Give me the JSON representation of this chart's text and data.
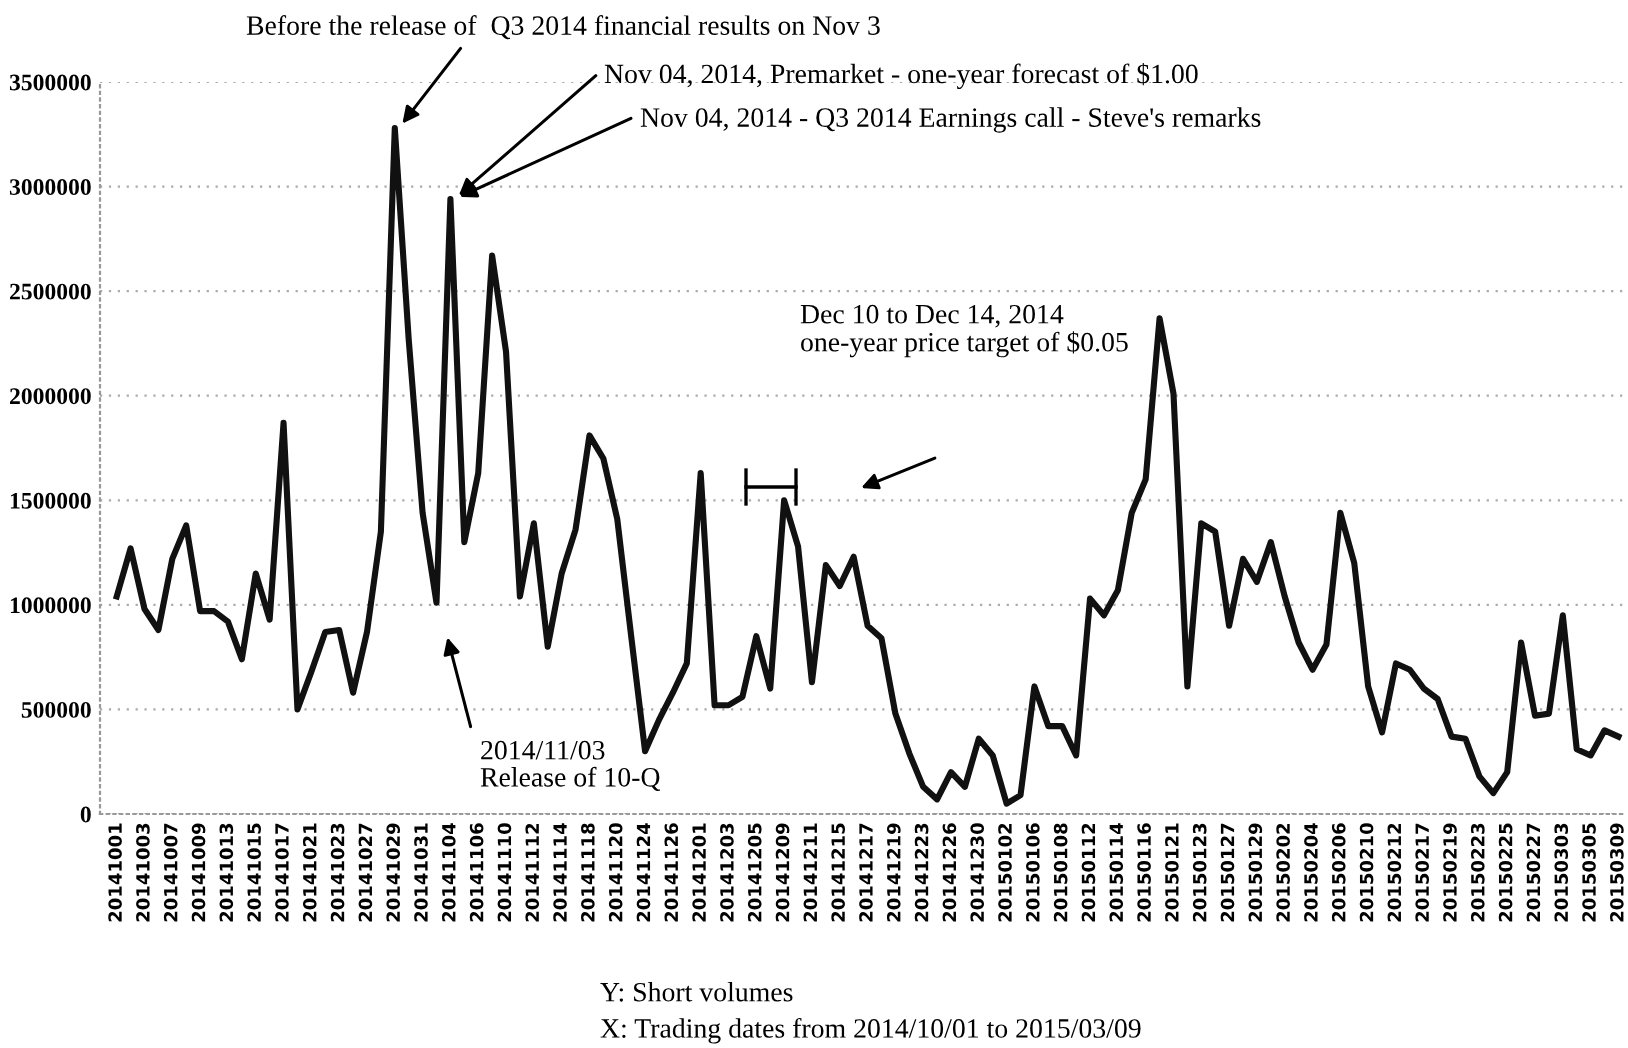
{
  "chart_data": {
    "type": "line",
    "categories": [
      "20141001",
      null,
      "20141003",
      null,
      "20141007",
      null,
      "20141009",
      null,
      "20141013",
      null,
      "20141015",
      null,
      "20141017",
      null,
      "20141021",
      null,
      "20141023",
      null,
      "20141027",
      null,
      "20141029",
      null,
      "20141031",
      null,
      "20141104",
      null,
      "20141106",
      null,
      "20141110",
      null,
      "20141112",
      null,
      "20141114",
      null,
      "20141118",
      null,
      "20141120",
      null,
      "20141124",
      null,
      "20141126",
      null,
      "20141201",
      null,
      "20141203",
      null,
      "20141205",
      null,
      "20141209",
      null,
      "20141211",
      null,
      "20141215",
      null,
      "20141217",
      null,
      "20141219",
      null,
      "20141223",
      null,
      "20141226",
      null,
      "20141230",
      null,
      "20150102",
      null,
      "20150106",
      null,
      "20150108",
      null,
      "20150112",
      null,
      "20150114",
      null,
      "20150116",
      null,
      "20150121",
      null,
      "20150123",
      null,
      "20150127",
      null,
      "20150129",
      null,
      "20150202",
      null,
      "20150204",
      null,
      "20150206",
      null,
      "20150210",
      null,
      "20150212",
      null,
      "20150217",
      null,
      "20150219",
      null,
      "20150223",
      null,
      "20150225",
      null,
      "20150227",
      null,
      "20150303",
      null,
      "20150305",
      null,
      "20150309"
    ],
    "series": [
      {
        "color": "#111111",
        "values": [
          1040000,
          1270000,
          980000,
          880000,
          1220000,
          1380000,
          970000,
          970000,
          920000,
          740000,
          1150000,
          930000,
          1870000,
          500000,
          680000,
          870000,
          880000,
          580000,
          870000,
          1350000,
          3280000,
          2270000,
          1440000,
          1010000,
          2940000,
          1300000,
          1630000,
          2670000,
          2210000,
          1040000,
          1390000,
          800000,
          1150000,
          1360000,
          1810000,
          1700000,
          1410000,
          850000,
          300000,
          450000,
          580000,
          720000,
          1630000,
          520000,
          520000,
          560000,
          850000,
          600000,
          1500000,
          1280000,
          630000,
          1190000,
          1090000,
          1230000,
          900000,
          840000,
          480000,
          290000,
          130000,
          70000,
          200000,
          130000,
          360000,
          280000,
          50000,
          90000,
          610000,
          420000,
          420000,
          280000,
          1030000,
          950000,
          1070000,
          1440000,
          1600000,
          2370000,
          2010000,
          610000,
          1390000,
          1350000,
          900000,
          1220000,
          1110000,
          1300000,
          1040000,
          820000,
          690000,
          810000,
          1440000,
          1200000,
          610000,
          390000,
          720000,
          690000,
          600000,
          550000,
          370000,
          360000,
          180000,
          100000,
          200000,
          820000,
          470000,
          480000,
          950000,
          310000,
          280000,
          400000,
          370000
        ]
      }
    ],
    "ylim": [
      0,
      3500000
    ],
    "yticks": [
      0,
      500000,
      1000000,
      1500000,
      2000000,
      2500000,
      3000000,
      3500000
    ],
    "grid": "y",
    "marker": "none",
    "line_style": "solid",
    "annotations": [
      {
        "text": "Before the release of  Q3 2014 financial results on Nov 3",
        "x": "20141029",
        "y": 3280000
      },
      {
        "text": "Nov 04, 2014, Premarket - one-year forecast of $1.00",
        "x": "20141104",
        "y": 2940000
      },
      {
        "text": "Nov 04, 2014 - Q3 2014 Earnings call - Steve's remarks",
        "x": "20141104",
        "y": 2940000
      },
      "2014/11/03\nRelease of 10-Q",
      "Dec 10 to Dec 14, 2014\none-year price target of $0.05",
      "Y: Short volumes",
      "X: Trading dates from 2014/10/01 to 2015/03/09"
    ]
  }
}
